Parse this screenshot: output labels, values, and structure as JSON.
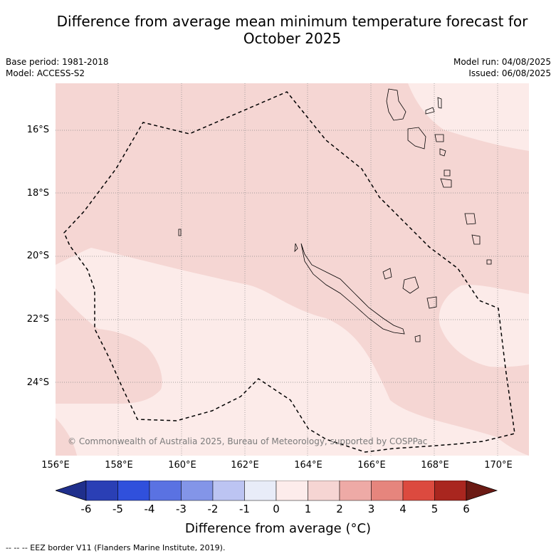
{
  "title": "Difference from average mean minimum temperature forecast for October 2025",
  "title_line1": "Difference from average mean minimum temperature forecast for",
  "title_line2": "October 2025",
  "base_period": "Base period: 1981-2018",
  "model": "Model: ACCESS-S2",
  "model_run": "Model run: 04/08/2025",
  "issued": "Issued: 06/08/2025",
  "latitude_labels": [
    "16°S",
    "18°S",
    "20°S",
    "22°S",
    "24°S"
  ],
  "longitude_labels": [
    "156°E",
    "158°E",
    "160°E",
    "162°E",
    "164°E",
    "166°E",
    "168°E",
    "170°E"
  ],
  "copyright": "© Commonwealth of Australia 2025, Bureau of Meteorology, supported by COSPPac",
  "colorbar": {
    "ticks": [
      "-6",
      "-5",
      "-4",
      "-3",
      "-2",
      "-1",
      "0",
      "1",
      "2",
      "3",
      "4",
      "5",
      "6"
    ],
    "colors": [
      "#1f2f8c",
      "#2a3fb5",
      "#3050dc",
      "#5a72e2",
      "#8395e8",
      "#bcc4f2",
      "#e8ecf8",
      "#fdeceb",
      "#f6d5d3",
      "#eeaaa6",
      "#e6857d",
      "#dc4a3f",
      "#a9261f",
      "#6b1a14"
    ],
    "label": "Difference from average (°C)"
  },
  "map_colors": {
    "anomaly_0_1": "#fcebe9",
    "anomaly_1_2": "#f5d6d3",
    "grid": "#888888",
    "coast": "#000000",
    "eez": "#000000"
  },
  "footnote": "-- -- -- EEZ border V11 (Flanders Marine Institute, 2019)."
}
